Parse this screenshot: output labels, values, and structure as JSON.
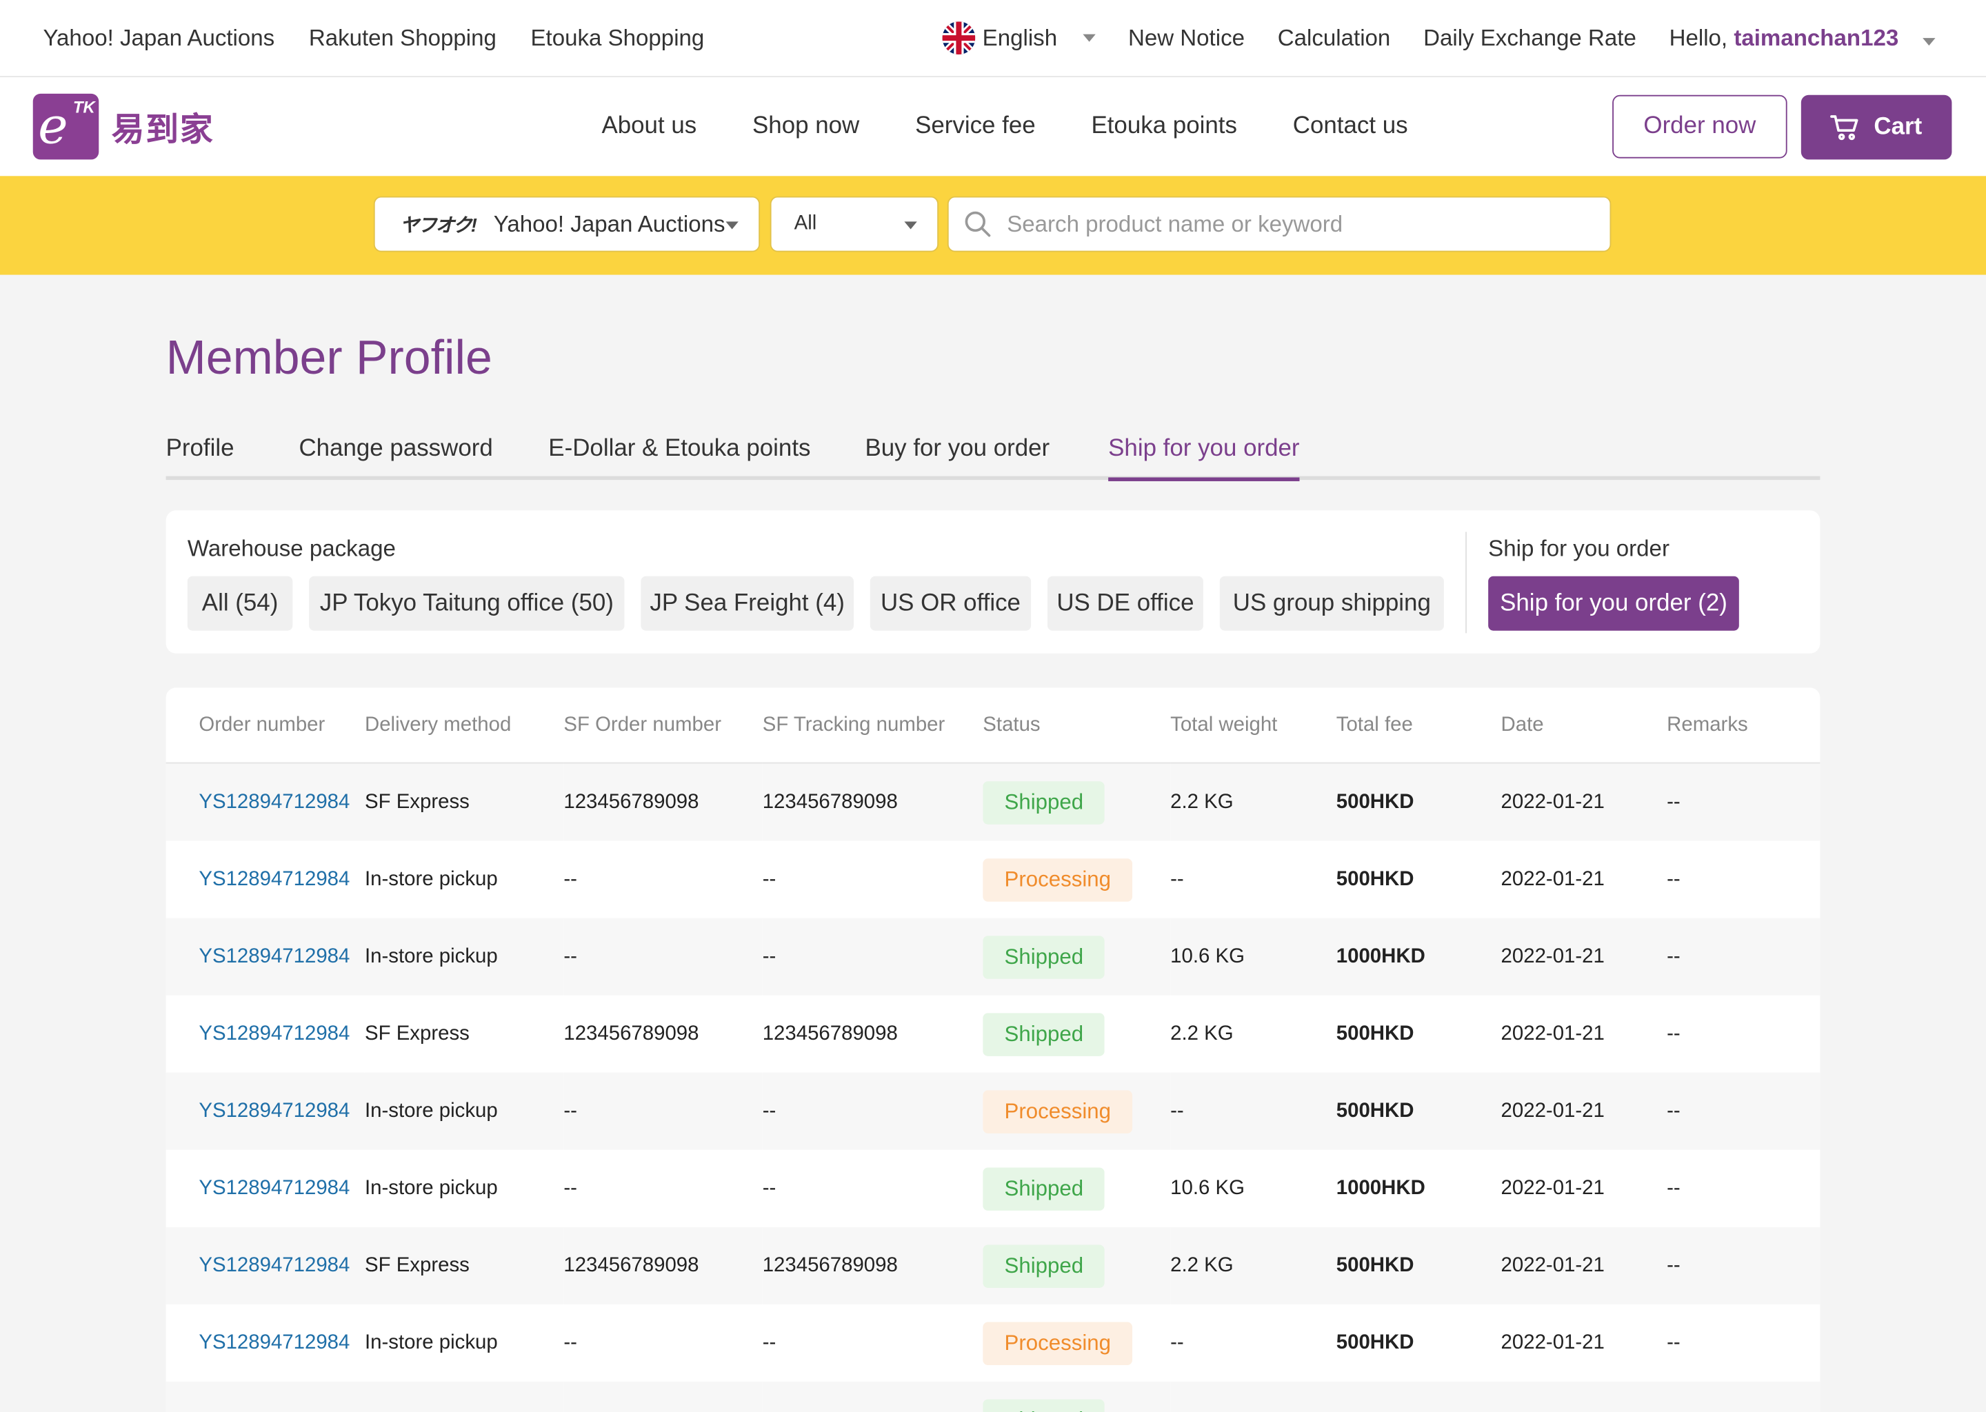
{
  "topbar": {
    "links": [
      "Yahoo! Japan Auctions",
      "Rakuten Shopping",
      "Etouka Shopping"
    ],
    "language": "English",
    "right_links": [
      "New Notice",
      "Calculation",
      "Daily Exchange Rate"
    ],
    "greeting": "Hello,",
    "username": "taimanchan123"
  },
  "nav": {
    "logo_text": "易到家",
    "logo_mark": "TK",
    "items": [
      "About us",
      "Shop now",
      "Service fee",
      "Etouka points",
      "Contact us"
    ],
    "order_button": "Order now",
    "cart_button": "Cart"
  },
  "search": {
    "site_logo": "ヤフオク!",
    "site": "Yahoo! Japan Auctions",
    "category": "All",
    "placeholder": "Search product name or keyword"
  },
  "page": {
    "title": "Member Profile",
    "tabs": [
      "Profile",
      "Change password",
      "E-Dollar & Etouka points",
      "Buy for you order",
      "Ship for you order"
    ],
    "active_tab": "Ship for you order"
  },
  "filters": {
    "warehouse_label": "Warehouse package",
    "warehouse_chips": [
      "All (54)",
      "JP Tokyo Taitung office (50)",
      "JP Sea Freight (4)",
      "US OR office",
      "US DE office",
      "US group shipping"
    ],
    "ship_label": "Ship for you order",
    "ship_chip": "Ship for you order (2)"
  },
  "table": {
    "headers": [
      "Order number",
      "Delivery method",
      "SF Order number",
      "SF Tracking number",
      "Status",
      "Total weight",
      "Total fee",
      "Date",
      "Remarks"
    ],
    "rows": [
      [
        "YS12894712984",
        "SF Express",
        "123456789098",
        "123456789098",
        "Shipped",
        "2.2 KG",
        "500HKD",
        "2022-01-21",
        "--"
      ],
      [
        "YS12894712984",
        "In-store pickup",
        "--",
        "--",
        "Processing",
        "--",
        "500HKD",
        "2022-01-21",
        "--"
      ],
      [
        "YS12894712984",
        "In-store pickup",
        "--",
        "--",
        "Shipped",
        "10.6 KG",
        "1000HKD",
        "2022-01-21",
        "--"
      ],
      [
        "YS12894712984",
        "SF Express",
        "123456789098",
        "123456789098",
        "Shipped",
        "2.2 KG",
        "500HKD",
        "2022-01-21",
        "--"
      ],
      [
        "YS12894712984",
        "In-store pickup",
        "--",
        "--",
        "Processing",
        "--",
        "500HKD",
        "2022-01-21",
        "--"
      ],
      [
        "YS12894712984",
        "In-store pickup",
        "--",
        "--",
        "Shipped",
        "10.6 KG",
        "1000HKD",
        "2022-01-21",
        "--"
      ],
      [
        "YS12894712984",
        "SF Express",
        "123456789098",
        "123456789098",
        "Shipped",
        "2.2 KG",
        "500HKD",
        "2022-01-21",
        "--"
      ],
      [
        "YS12894712984",
        "In-store pickup",
        "--",
        "--",
        "Processing",
        "--",
        "500HKD",
        "2022-01-21",
        "--"
      ],
      [
        "",
        "",
        "",
        "",
        "Shipped",
        "",
        "",
        "",
        ""
      ]
    ]
  },
  "colors": {
    "brand_purple": "#7b3f8c",
    "search_yellow": "#fbd43f",
    "link_blue": "#1f6fa8",
    "shipped_green": "#3fa64a",
    "processing_orange": "#f08c2c"
  }
}
